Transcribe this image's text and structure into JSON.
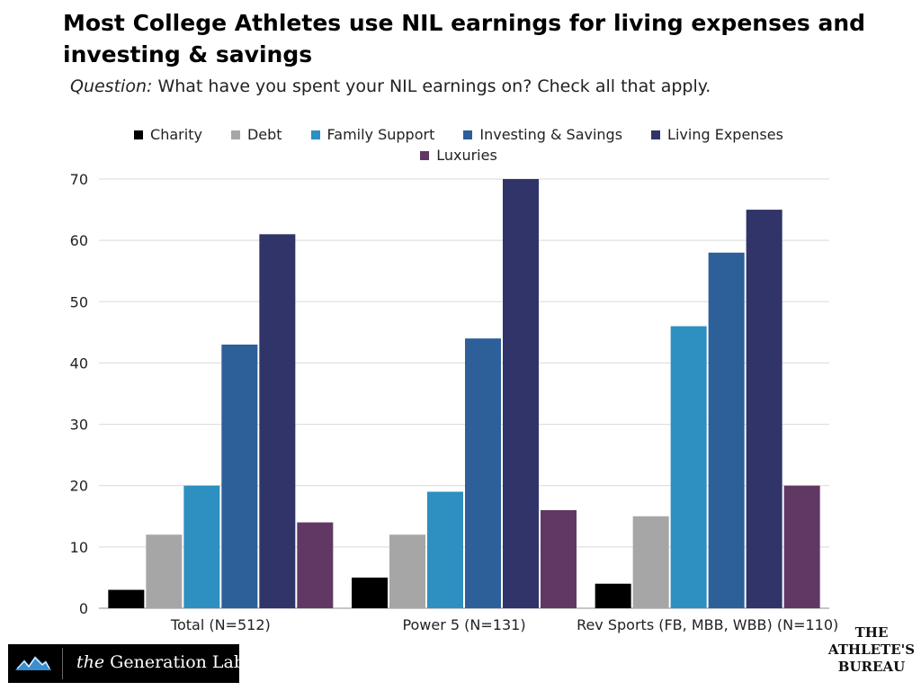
{
  "header": {
    "title": "Most College Athletes use NIL earnings for living expenses and investing & savings",
    "question_label": "Question:",
    "question_text": "What have you spent your NIL earnings on? Check all that apply."
  },
  "colors": {
    "Charity": "#000000",
    "Debt": "#a6a6a6",
    "Family Support": "#2e8fc1",
    "Investing & Savings": "#2d5f99",
    "Living Expenses": "#303468",
    "Luxuries": "#613864"
  },
  "chart_data": {
    "type": "bar",
    "categories": [
      "Total (N=512)",
      "Power 5 (N=131)",
      "Rev Sports (FB, MBB, WBB) (N=110)"
    ],
    "series": [
      {
        "name": "Charity",
        "values": [
          3,
          5,
          4
        ]
      },
      {
        "name": "Debt",
        "values": [
          12,
          12,
          15
        ]
      },
      {
        "name": "Family Support",
        "values": [
          20,
          19,
          46
        ]
      },
      {
        "name": "Investing & Savings",
        "values": [
          43,
          44,
          58
        ]
      },
      {
        "name": "Living Expenses",
        "values": [
          61,
          70,
          65
        ]
      },
      {
        "name": "Luxuries",
        "values": [
          14,
          16,
          20
        ]
      }
    ],
    "ylim": [
      0,
      70
    ],
    "yticks": [
      "0",
      "10",
      "20",
      "30",
      "40",
      "50",
      "60",
      "70"
    ],
    "grid": true,
    "legend_position": "top"
  },
  "footer": {
    "logo_left_the": "the",
    "logo_left_name": "Generation Lab",
    "logo_right": [
      "THE",
      "ATHLETE'S",
      "BUREAU"
    ]
  }
}
